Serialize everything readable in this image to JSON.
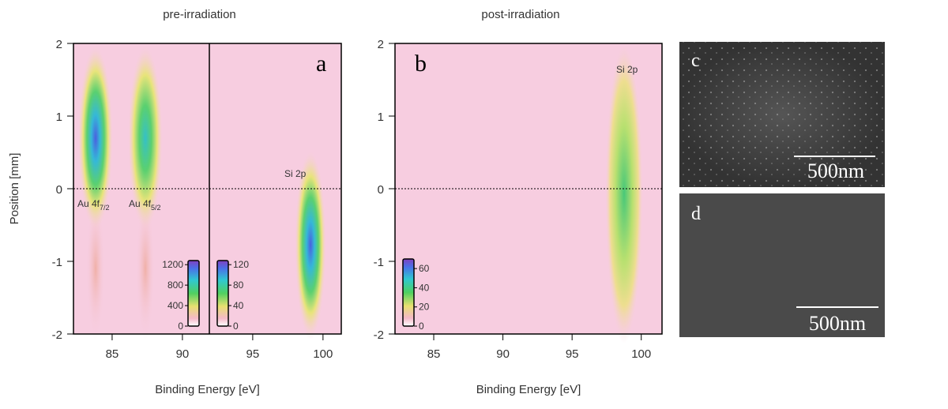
{
  "chart_data": [
    {
      "type": "heatmap",
      "title": "pre-irradiation",
      "panel_label": "a",
      "xlabel": "Binding Energy [eV]",
      "ylabel": "Position [mm]",
      "xlim": [
        82.25,
        101.3
      ],
      "ylim": [
        -2,
        2
      ],
      "xticks": [
        85,
        90,
        95,
        100
      ],
      "yticks": [
        -2,
        -1,
        0,
        1,
        2
      ],
      "hline": 0,
      "annotations": [
        {
          "text": "Au 4f",
          "subscript": "7/2"
        },
        {
          "text": "Au 4f",
          "subscript": "5/2"
        },
        {
          "text": "Si 2p"
        }
      ],
      "colorbars": [
        {
          "clim": [
            0,
            1280
          ],
          "ticks": [
            0,
            400,
            800,
            1200
          ],
          "label_side": "left"
        },
        {
          "clim": [
            0,
            128
          ],
          "ticks": [
            0,
            40,
            80,
            120
          ],
          "label_side": "right"
        }
      ]
    },
    {
      "type": "heatmap",
      "title": "post-irradiation",
      "panel_label": "b",
      "xlabel": "Binding Energy [eV]",
      "xlim": [
        82.2,
        101.5
      ],
      "ylim": [
        -2,
        2
      ],
      "xticks": [
        85,
        90,
        95,
        100
      ],
      "yticks": [
        -2,
        -1,
        0,
        1,
        2
      ],
      "hline": 0,
      "annotations": [
        {
          "text": "Si 2p"
        }
      ],
      "colorbars": [
        {
          "clim": [
            0,
            70
          ],
          "ticks": [
            0,
            20,
            40,
            60
          ],
          "label_side": "right"
        }
      ]
    }
  ],
  "images": [
    {
      "label": "c",
      "scale_bar": "500nm"
    },
    {
      "label": "d",
      "scale_bar": "500nm"
    }
  ]
}
